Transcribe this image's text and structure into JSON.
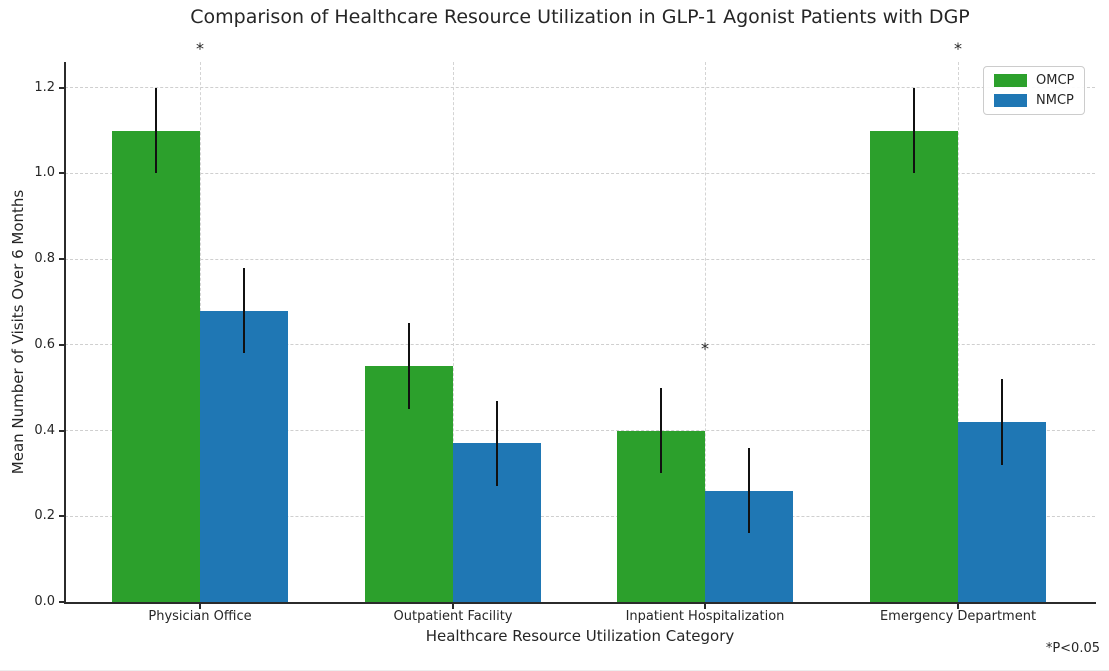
{
  "chart_data": {
    "type": "bar",
    "title": "Comparison of Healthcare Resource Utilization in GLP-1 Agonist Patients with DGP",
    "xlabel": "Healthcare Resource Utilization Category",
    "ylabel": "Mean Number of Visits Over 6 Months",
    "footnote": "*P<0.05",
    "categories": [
      "Physician Office",
      "Outpatient Facility",
      "Inpatient Hospitalization",
      "Emergency Department"
    ],
    "series": [
      {
        "name": "OMCP",
        "color": "#2ca02c",
        "values": [
          1.1,
          0.55,
          0.4,
          1.1
        ],
        "errors": [
          0.1,
          0.1,
          0.1,
          0.1
        ]
      },
      {
        "name": "NMCP",
        "color": "#1f77b4",
        "values": [
          0.68,
          0.37,
          0.26,
          0.42
        ],
        "errors": [
          0.1,
          0.1,
          0.1,
          0.1
        ]
      }
    ],
    "yticks": [
      0.0,
      0.2,
      0.4,
      0.6,
      0.8,
      1.0,
      1.2
    ],
    "ylim": [
      0,
      1.26
    ],
    "grid": true,
    "grid_style": "dashed",
    "legend_position": "upper right",
    "error_bar_color": "#111111",
    "significance_marker": "*",
    "significance": [
      {
        "category_index": 0,
        "y": 1.29
      },
      {
        "category_index": 2,
        "y": 0.59
      },
      {
        "category_index": 3,
        "y": 1.29
      }
    ]
  }
}
